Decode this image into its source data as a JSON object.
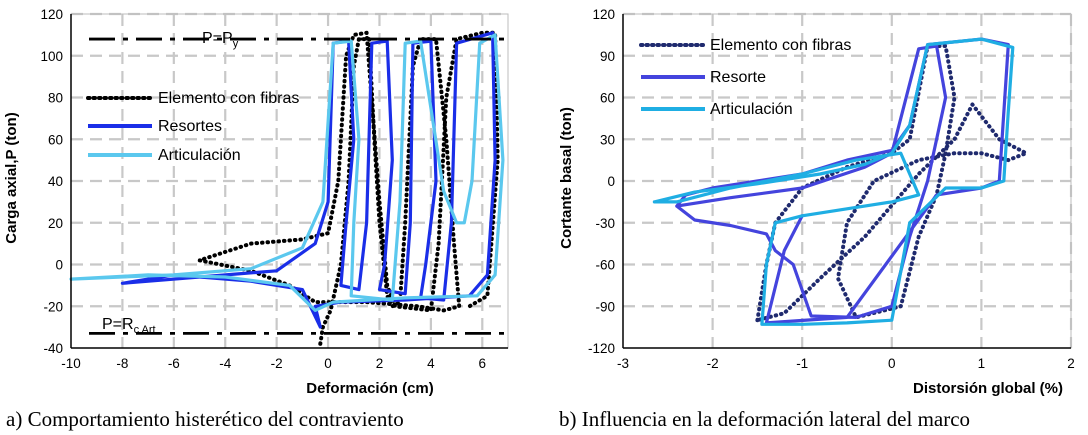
{
  "chart_data": [
    {
      "type": "line",
      "panel": "a",
      "ylabel": "Carga axial,P (ton)",
      "xlabel": "Deformación (cm)",
      "caption": "a) Comportamiento histerético del contraviento",
      "xlim": [
        -10,
        7
      ],
      "ylim": [
        -40,
        120
      ],
      "xticks": [
        -10,
        -8,
        -6,
        -4,
        -2,
        0,
        2,
        4,
        6
      ],
      "yticks": [
        -40,
        -20,
        0,
        20,
        40,
        60,
        80,
        100,
        120
      ],
      "grid": true,
      "legend_position": "left",
      "annotations": [
        {
          "text": "P=P",
          "sub": "y",
          "y": 108
        },
        {
          "text": "P=R",
          "sub": "c Art",
          "y": -33
        }
      ],
      "series": [
        {
          "name": "Elemento con fibras",
          "color": "#000000",
          "style": "dotted",
          "points": [
            [
              -0.3,
              -38
            ],
            [
              -0.2,
              -30
            ],
            [
              0.1,
              -22
            ],
            [
              0.5,
              0
            ],
            [
              0.8,
              40
            ],
            [
              1.0,
              95
            ],
            [
              1.2,
              108
            ],
            [
              1.6,
              108
            ],
            [
              1.8,
              60
            ],
            [
              2.0,
              20
            ],
            [
              2.3,
              -15
            ],
            [
              2.5,
              -20
            ],
            [
              2.8,
              -18
            ],
            [
              3.0,
              20
            ],
            [
              3.3,
              95
            ],
            [
              3.6,
              108
            ],
            [
              4.2,
              108
            ],
            [
              4.6,
              60
            ],
            [
              4.9,
              10
            ],
            [
              5.1,
              -20
            ],
            [
              4.5,
              -22
            ],
            [
              3.5,
              -20
            ],
            [
              1.5,
              -18
            ],
            [
              0.5,
              -18
            ],
            [
              -0.5,
              -18
            ],
            [
              -1.5,
              -10
            ],
            [
              -3,
              -3
            ],
            [
              -5,
              2
            ],
            [
              -3,
              10
            ],
            [
              -1,
              12
            ],
            [
              0,
              15
            ],
            [
              0.4,
              40
            ],
            [
              0.7,
              100
            ],
            [
              1.0,
              110
            ],
            [
              1.5,
              111
            ],
            [
              2.0,
              30
            ],
            [
              2.3,
              -10
            ],
            [
              2.6,
              -20
            ],
            [
              4.0,
              -22
            ],
            [
              4.3,
              10
            ],
            [
              4.6,
              80
            ],
            [
              5.0,
              108
            ],
            [
              6.0,
              111
            ],
            [
              6.5,
              111
            ],
            [
              6.6,
              50
            ],
            [
              6.2,
              -15
            ],
            [
              5.5,
              -20
            ]
          ]
        },
        {
          "name": "Resortes",
          "color": "#1a2ee8",
          "style": "solid",
          "points": [
            [
              -8,
              -9
            ],
            [
              -5,
              -6
            ],
            [
              -2,
              -3
            ],
            [
              -0.5,
              10
            ],
            [
              0,
              30
            ],
            [
              0.2,
              106
            ],
            [
              0.8,
              107
            ],
            [
              1.0,
              60
            ],
            [
              0.7,
              20
            ],
            [
              0.5,
              -10
            ],
            [
              1.2,
              -12
            ],
            [
              1.5,
              20
            ],
            [
              1.7,
              106
            ],
            [
              2.3,
              107
            ],
            [
              2.5,
              50
            ],
            [
              2.2,
              0
            ],
            [
              2.0,
              -12
            ],
            [
              3.0,
              -14
            ],
            [
              3.2,
              20
            ],
            [
              3.3,
              106
            ],
            [
              4.0,
              107
            ],
            [
              4.2,
              40
            ],
            [
              3.8,
              0
            ],
            [
              3.6,
              -16
            ],
            [
              4.5,
              -17
            ],
            [
              4.8,
              20
            ],
            [
              5.0,
              106
            ],
            [
              6.4,
              111
            ],
            [
              6.5,
              50
            ],
            [
              6.2,
              -5
            ],
            [
              5.5,
              -15
            ],
            [
              3.0,
              -17
            ],
            [
              0.5,
              -18
            ],
            [
              -0.5,
              -20
            ],
            [
              -0.3,
              -30
            ],
            [
              -1,
              -12
            ],
            [
              -3,
              -8
            ],
            [
              -6,
              -5
            ],
            [
              -8,
              -9
            ]
          ]
        },
        {
          "name": "Articulación",
          "color": "#5bc8ee",
          "style": "solid",
          "points": [
            [
              -10,
              -7
            ],
            [
              -6,
              -5
            ],
            [
              -3,
              -2
            ],
            [
              -1,
              8
            ],
            [
              -0.2,
              30
            ],
            [
              0.2,
              106
            ],
            [
              0.9,
              107
            ],
            [
              1.2,
              60
            ],
            [
              1.0,
              20
            ],
            [
              0.9,
              -15
            ],
            [
              2.5,
              -17
            ],
            [
              2.8,
              30
            ],
            [
              3.0,
              106
            ],
            [
              3.6,
              107
            ],
            [
              4.5,
              35
            ],
            [
              5.0,
              20
            ],
            [
              5.3,
              20
            ],
            [
              5.6,
              40
            ],
            [
              5.9,
              106
            ],
            [
              6.5,
              110
            ],
            [
              6.8,
              50
            ],
            [
              6.5,
              -5
            ],
            [
              5.8,
              -15
            ],
            [
              3.0,
              -16
            ],
            [
              0.2,
              -18
            ],
            [
              -0.5,
              -22
            ],
            [
              -1.5,
              -10
            ],
            [
              -4,
              -6
            ],
            [
              -7,
              -5
            ],
            [
              -10,
              -7
            ]
          ]
        }
      ]
    },
    {
      "type": "line",
      "panel": "b",
      "ylabel": "Cortante basal (ton)",
      "xlabel": "Distorsión global (%)",
      "caption": "b) Influencia en la deformación lateral del marco",
      "xlim": [
        -3,
        2
      ],
      "ylim": [
        -120,
        120
      ],
      "xticks": [
        -3,
        -2,
        -1,
        0,
        1,
        2
      ],
      "yticks": [
        -120,
        -90,
        -60,
        -30,
        0,
        30,
        60,
        90,
        120
      ],
      "grid": true,
      "legend_position": "top-left",
      "series": [
        {
          "name": "Elemento con fibras",
          "color": "#1f2a6e",
          "style": "dotted",
          "points": [
            [
              -1.5,
              -100
            ],
            [
              -1.4,
              -60
            ],
            [
              -1.3,
              -30
            ],
            [
              -1.0,
              -5
            ],
            [
              -0.5,
              10
            ],
            [
              0,
              20
            ],
            [
              0.2,
              30
            ],
            [
              0.4,
              97
            ],
            [
              0.6,
              97
            ],
            [
              0.7,
              60
            ],
            [
              0.6,
              20
            ],
            [
              0.5,
              -10
            ],
            [
              0.3,
              -40
            ],
            [
              0.1,
              -90
            ],
            [
              -0.4,
              -98
            ],
            [
              -0.6,
              -70
            ],
            [
              -0.5,
              -30
            ],
            [
              -0.2,
              0
            ],
            [
              0.3,
              15
            ],
            [
              0.7,
              20
            ],
            [
              1.0,
              20
            ],
            [
              1.3,
              15
            ],
            [
              1.5,
              20
            ],
            [
              1.2,
              30
            ],
            [
              0.9,
              55
            ],
            [
              0.7,
              30
            ],
            [
              0.3,
              5
            ],
            [
              -0.3,
              -40
            ],
            [
              -0.8,
              -70
            ],
            [
              -1.2,
              -95
            ],
            [
              -1.5,
              -100
            ]
          ]
        },
        {
          "name": "Resorte",
          "color": "#4444dd",
          "style": "solid",
          "points": [
            [
              -2.4,
              -18
            ],
            [
              -1.8,
              -12
            ],
            [
              -1.0,
              -5
            ],
            [
              -0.3,
              10
            ],
            [
              0,
              20
            ],
            [
              0.3,
              95
            ],
            [
              0.5,
              97
            ],
            [
              0.6,
              60
            ],
            [
              0.4,
              0
            ],
            [
              0.2,
              -40
            ],
            [
              0,
              -90
            ],
            [
              -0.4,
              -98
            ],
            [
              -0.9,
              -97
            ],
            [
              -1.1,
              -60
            ],
            [
              -1.3,
              -50
            ],
            [
              -1.4,
              -38
            ],
            [
              -1.8,
              -32
            ],
            [
              -2.2,
              -28
            ],
            [
              -2.4,
              -18
            ],
            [
              -2.3,
              -10
            ],
            [
              -2.0,
              -5
            ],
            [
              -1.5,
              0
            ],
            [
              -1.0,
              5
            ],
            [
              -0.5,
              15
            ],
            [
              0,
              22
            ],
            [
              0.2,
              40
            ],
            [
              0.4,
              98
            ],
            [
              1.0,
              102
            ],
            [
              1.3,
              98
            ],
            [
              1.2,
              0
            ],
            [
              1.0,
              -5
            ],
            [
              0.5,
              -10
            ],
            [
              -0.5,
              -98
            ],
            [
              -1.4,
              -102
            ],
            [
              -1.2,
              -50
            ],
            [
              -1.0,
              -25
            ]
          ]
        },
        {
          "name": "Articulación",
          "color": "#1faee3",
          "style": "solid",
          "points": [
            [
              -2.65,
              -15
            ],
            [
              -2.2,
              -8
            ],
            [
              -1.5,
              -2
            ],
            [
              -0.8,
              5
            ],
            [
              -0.3,
              12
            ],
            [
              0,
              20
            ],
            [
              0.2,
              40
            ],
            [
              0.4,
              98
            ],
            [
              1.0,
              102
            ],
            [
              1.35,
              96
            ],
            [
              1.3,
              50
            ],
            [
              1.25,
              0
            ],
            [
              1.0,
              -5
            ],
            [
              0.6,
              -5
            ],
            [
              0.2,
              -30
            ],
            [
              0,
              -100
            ],
            [
              -0.5,
              -102
            ],
            [
              -1.0,
              -103
            ],
            [
              -1.45,
              -103
            ],
            [
              -1.4,
              -60
            ],
            [
              -1.3,
              -30
            ],
            [
              -1.0,
              -25
            ],
            [
              -0.5,
              -20
            ],
            [
              0,
              -15
            ],
            [
              0.3,
              -10
            ],
            [
              0.1,
              20
            ],
            [
              -0.4,
              15
            ],
            [
              -1.0,
              5
            ],
            [
              -1.8,
              -5
            ],
            [
              -2.4,
              -15
            ],
            [
              -2.65,
              -15
            ]
          ]
        }
      ]
    }
  ]
}
